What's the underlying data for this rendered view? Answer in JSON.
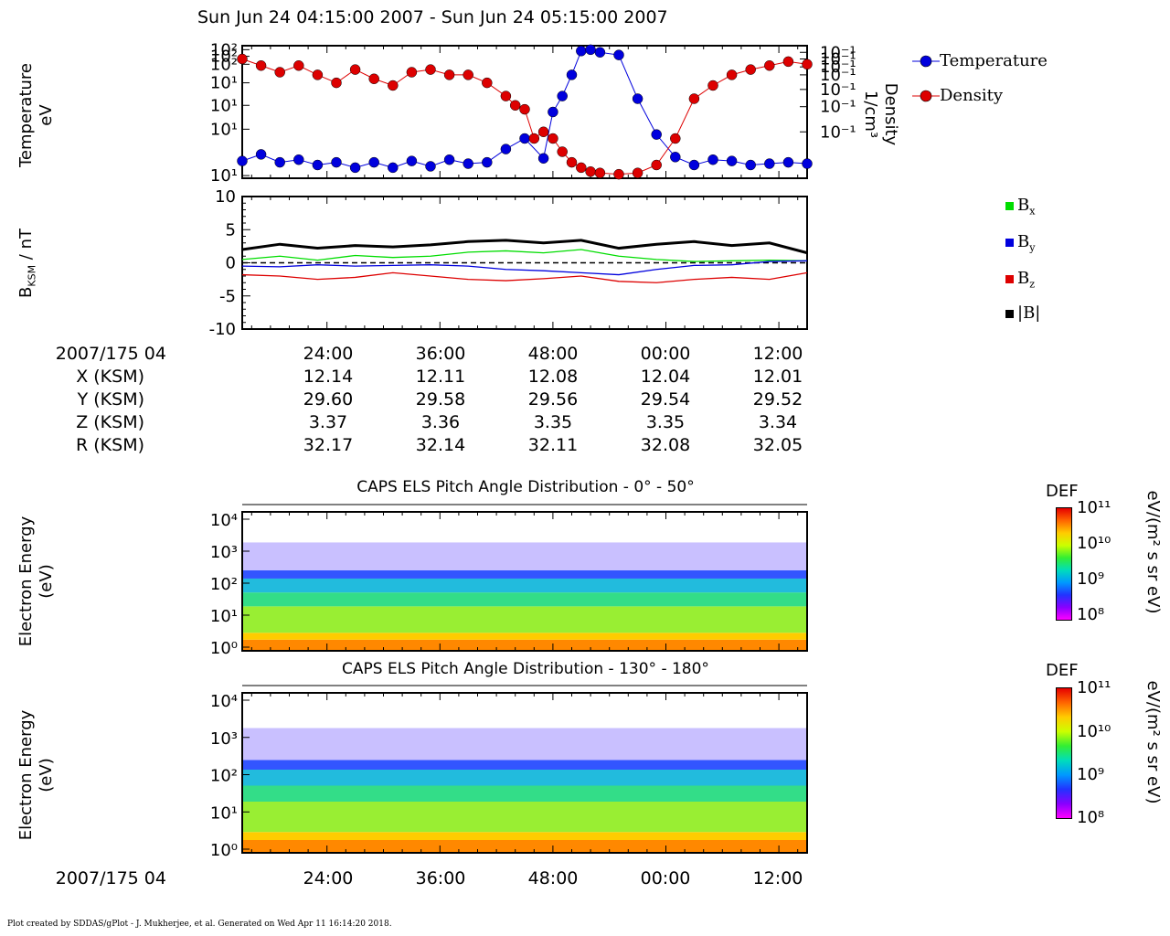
{
  "title": "Sun Jun 24 04:15:00 2007 - Sun Jun 24 05:15:00 2007",
  "panels": {
    "plasma": {
      "ylabel_line1": "Temperature",
      "ylabel_line2": "eV",
      "right_label_line1": "Density",
      "right_label_line2": "1/cm³",
      "left_tick_labels": [
        "10²",
        "10²",
        "10²",
        "10¹",
        "10¹",
        "10¹",
        "10¹"
      ],
      "right_tick_labels": [
        "10⁻¹",
        "10⁻¹",
        "10⁻¹",
        "10⁻¹",
        "10⁻¹",
        "10⁻¹",
        "10⁻¹"
      ],
      "legend": [
        {
          "label": "Temperature",
          "color": "#0000dd"
        },
        {
          "label": "Density",
          "color": "#dd0000"
        }
      ]
    },
    "mag": {
      "ylabel": "B",
      "ylabel_sub": "KSM",
      "ylabel_unit": " / nT",
      "legend": [
        {
          "label": "B",
          "sub": "x",
          "color": "#00dd00"
        },
        {
          "label": "B",
          "sub": "y",
          "color": "#0000dd"
        },
        {
          "label": "B",
          "sub": "z",
          "color": "#dd0000"
        },
        {
          "label": "|B|",
          "sub": "",
          "color": "#000000"
        }
      ]
    },
    "spec1": {
      "title": "CAPS ELS Pitch Angle Distribution - 0° - 50°",
      "ylabel_line1": "Electron Energy",
      "ylabel_line2": "(eV)",
      "tick_labels": [
        "10⁴",
        "10³",
        "10²",
        "10¹",
        "10⁰"
      ],
      "cb_title": "DEF",
      "cb_units": "eV/(m² s sr eV)",
      "cb_ticks": [
        "10¹¹",
        "10¹⁰",
        "10⁹",
        "10⁸"
      ]
    },
    "spec2": {
      "title": "CAPS ELS Pitch Angle Distribution - 130° - 180°",
      "ylabel_line1": "Electron Energy",
      "ylabel_line2": "(eV)",
      "tick_labels": [
        "10⁴",
        "10³",
        "10²",
        "10¹",
        "10⁰"
      ],
      "cb_title": "DEF",
      "cb_units": "eV/(m² s sr eV)",
      "cb_ticks": [
        "10¹¹",
        "10¹⁰",
        "10⁹",
        "10⁸"
      ]
    }
  },
  "ephemeris": {
    "start_label": "2007/175 04",
    "rows": [
      {
        "label": "X (KSM)",
        "values": [
          "12.14",
          "12.11",
          "12.08",
          "12.04",
          "12.01"
        ]
      },
      {
        "label": "Y (KSM)",
        "values": [
          "29.60",
          "29.58",
          "29.56",
          "29.54",
          "29.52"
        ]
      },
      {
        "label": "Z (KSM)",
        "values": [
          "3.37",
          "3.36",
          "3.35",
          "3.35",
          "3.34"
        ]
      },
      {
        "label": "R (KSM)",
        "values": [
          "32.17",
          "32.14",
          "32.11",
          "32.08",
          "32.05"
        ]
      }
    ],
    "time_labels": [
      "24:00",
      "36:00",
      "48:00",
      "00:00",
      "12:00"
    ]
  },
  "bottom_axis": {
    "start_label": "2007/175 04",
    "time_labels": [
      "24:00",
      "36:00",
      "48:00",
      "00:00",
      "12:00"
    ]
  },
  "footer": "Plot created by SDDAS/gPlot - J. Mukherjee, et al.  Generated on Wed Apr 11 16:14:20 2018.",
  "chart_data": [
    {
      "type": "line",
      "name": "plasma moments",
      "x_unit": "minutes after 04:15",
      "xlim": [
        0,
        60
      ],
      "series": [
        {
          "name": "Temperature",
          "color": "#0000dd",
          "x": [
            0,
            2,
            4,
            6,
            8,
            10,
            12,
            14,
            16,
            18,
            20,
            22,
            24,
            26,
            28,
            30,
            32,
            33,
            34,
            35,
            36,
            37,
            38,
            40,
            42,
            44,
            46,
            48,
            50,
            52,
            54,
            56,
            58,
            60
          ],
          "y": [
            0.13,
            0.18,
            0.12,
            0.14,
            0.1,
            0.12,
            0.08,
            0.12,
            0.08,
            0.13,
            0.09,
            0.14,
            0.11,
            0.12,
            0.22,
            0.3,
            0.15,
            0.5,
            0.62,
            0.78,
            0.96,
            0.97,
            0.95,
            0.93,
            0.6,
            0.33,
            0.16,
            0.1,
            0.14,
            0.13,
            0.1,
            0.11,
            0.12,
            0.11
          ]
        },
        {
          "name": "Density",
          "color": "#dd0000",
          "x": [
            0,
            2,
            4,
            6,
            8,
            10,
            12,
            14,
            16,
            18,
            20,
            22,
            24,
            26,
            28,
            29,
            30,
            31,
            32,
            33,
            34,
            35,
            36,
            37,
            38,
            40,
            42,
            44,
            46,
            48,
            50,
            52,
            54,
            56,
            58,
            60
          ],
          "y": [
            0.9,
            0.85,
            0.8,
            0.85,
            0.78,
            0.72,
            0.82,
            0.75,
            0.7,
            0.8,
            0.82,
            0.78,
            0.78,
            0.72,
            0.62,
            0.55,
            0.52,
            0.3,
            0.35,
            0.3,
            0.2,
            0.12,
            0.08,
            0.05,
            0.04,
            0.03,
            0.04,
            0.1,
            0.3,
            0.6,
            0.7,
            0.78,
            0.82,
            0.85,
            0.88,
            0.86
          ]
        }
      ]
    },
    {
      "type": "line",
      "name": "magnetic field",
      "x_unit": "minutes after 04:15",
      "xlim": [
        0,
        60
      ],
      "ylim": [
        -10,
        10
      ],
      "yticks": [
        10,
        5,
        0,
        -5,
        -10
      ],
      "series": [
        {
          "name": "Bx",
          "color": "#00dd00",
          "x": [
            0,
            4,
            8,
            12,
            16,
            20,
            24,
            28,
            32,
            36,
            40,
            44,
            48,
            52,
            56,
            60
          ],
          "y": [
            0.5,
            1.0,
            0.4,
            1.1,
            0.8,
            1.0,
            1.6,
            1.8,
            1.5,
            2.0,
            1.0,
            0.5,
            0.2,
            0.3,
            0.4,
            0.3
          ]
        },
        {
          "name": "By",
          "color": "#0000dd",
          "x": [
            0,
            4,
            8,
            12,
            16,
            20,
            24,
            28,
            32,
            36,
            40,
            44,
            48,
            52,
            56,
            60
          ],
          "y": [
            -0.5,
            -0.6,
            -0.3,
            -0.5,
            -0.4,
            -0.3,
            -0.5,
            -1.0,
            -1.2,
            -1.5,
            -1.8,
            -1.0,
            -0.4,
            -0.3,
            0.2,
            0.3
          ]
        },
        {
          "name": "Bz",
          "color": "#dd0000",
          "x": [
            0,
            4,
            8,
            12,
            16,
            20,
            24,
            28,
            32,
            36,
            40,
            44,
            48,
            52,
            56,
            60
          ],
          "y": [
            -1.8,
            -2.0,
            -2.5,
            -2.2,
            -1.5,
            -2.0,
            -2.5,
            -2.7,
            -2.4,
            -2.0,
            -2.8,
            -3.0,
            -2.5,
            -2.2,
            -2.5,
            -1.5
          ]
        },
        {
          "name": "|B|",
          "color": "#000000",
          "x": [
            0,
            4,
            8,
            12,
            16,
            20,
            24,
            28,
            32,
            36,
            40,
            44,
            48,
            52,
            56,
            60
          ],
          "y": [
            2.0,
            2.8,
            2.2,
            2.6,
            2.4,
            2.7,
            3.2,
            3.4,
            3.0,
            3.4,
            2.2,
            2.8,
            3.2,
            2.6,
            3.0,
            1.5
          ]
        }
      ]
    },
    {
      "type": "heatmap",
      "name": "CAPS ELS Pitch Angle Distribution - 0° - 50°",
      "x_unit": "minutes after 04:15",
      "xlim": [
        0,
        60
      ],
      "y_unit": "eV",
      "ylim": [
        1,
        20000
      ],
      "yscale": "log",
      "colorbar": {
        "label": "DEF",
        "range": [
          100000000.0,
          100000000000.0
        ],
        "scale": "log"
      }
    },
    {
      "type": "heatmap",
      "name": "CAPS ELS Pitch Angle Distribution - 130° - 180°",
      "x_unit": "minutes after 04:15",
      "xlim": [
        0,
        60
      ],
      "y_unit": "eV",
      "ylim": [
        1,
        20000
      ],
      "yscale": "log",
      "colorbar": {
        "label": "DEF",
        "range": [
          100000000.0,
          100000000000.0
        ],
        "scale": "log"
      }
    }
  ]
}
